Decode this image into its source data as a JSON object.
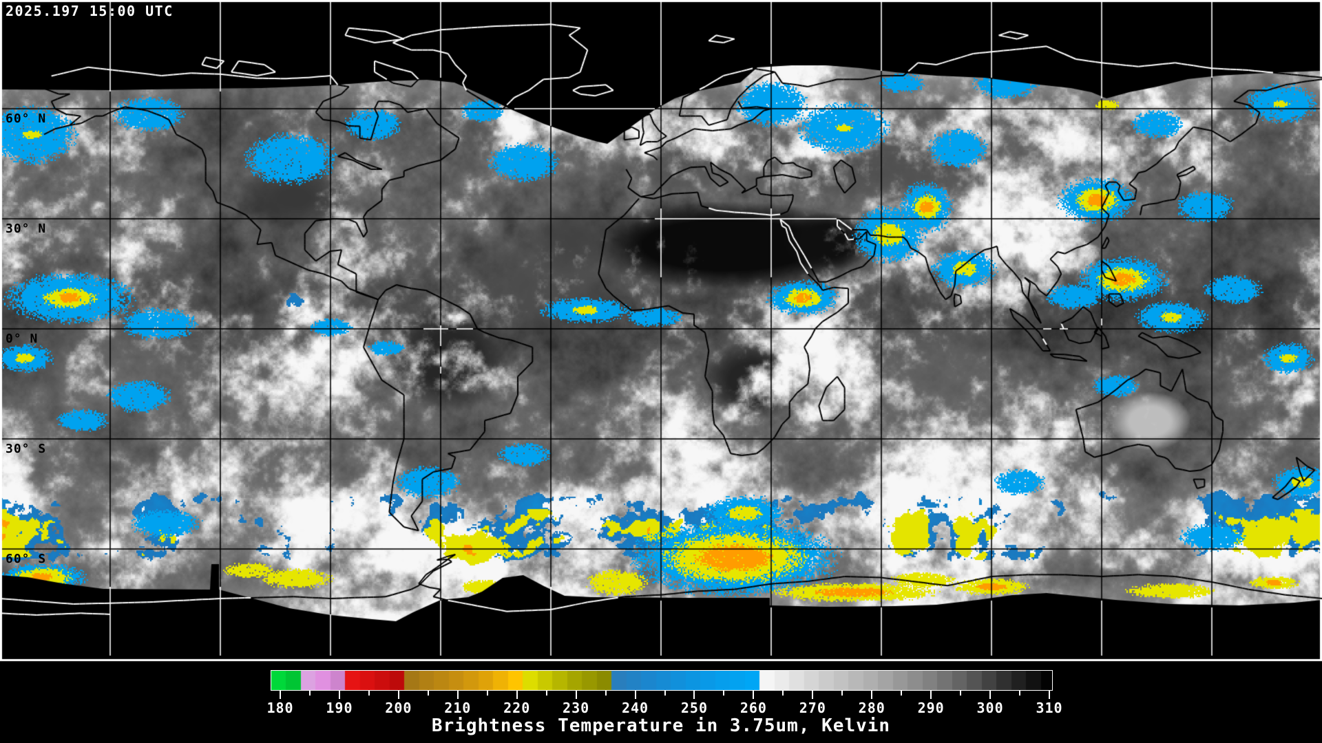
{
  "header": {
    "timestamp": "2025.197 15:00 UTC"
  },
  "map": {
    "projection": "equirectangular",
    "latitude_labels": [
      {
        "lat": 60,
        "label": "60° N"
      },
      {
        "lat": 30,
        "label": "30° N"
      },
      {
        "lat": 0,
        "label": "0° N"
      },
      {
        "lat": -30,
        "label": "30° S"
      },
      {
        "lat": -60,
        "label": "60° S"
      }
    ],
    "grid": {
      "lon_step_deg": 30,
      "lat_step_deg": 30
    }
  },
  "colorbar": {
    "title": "Brightness Temperature in 3.75um, Kelvin",
    "min": 180,
    "max": 310,
    "major_tick_step": 10,
    "minor_tick_step": 5,
    "tick_labels": [
      "180",
      "190",
      "200",
      "210",
      "220",
      "230",
      "240",
      "250",
      "260",
      "270",
      "280",
      "290",
      "300",
      "310"
    ],
    "band_step": 2.5,
    "stops": [
      [
        178.5,
        "#00e23e"
      ],
      [
        182.5,
        "#00c332"
      ],
      [
        185.0,
        "#f49ef4"
      ],
      [
        188.0,
        "#d98bd9"
      ],
      [
        191.0,
        "#c47fc4"
      ],
      [
        191.3,
        "#ea1414"
      ],
      [
        196.0,
        "#d40f0f"
      ],
      [
        200.0,
        "#bb0a0a"
      ],
      [
        200.3,
        "#9c7218"
      ],
      [
        205.0,
        "#b28114"
      ],
      [
        210.0,
        "#c78f10"
      ],
      [
        215.0,
        "#e0a309"
      ],
      [
        219.8,
        "#ffc400"
      ],
      [
        220.0,
        "#efef00"
      ],
      [
        224.0,
        "#cfcf00"
      ],
      [
        229.0,
        "#a9a900"
      ],
      [
        235.0,
        "#8a8a00"
      ],
      [
        235.2,
        "#2f7ab6"
      ],
      [
        242.0,
        "#1b86cd"
      ],
      [
        250.0,
        "#0c95e2"
      ],
      [
        256.0,
        "#04a0ee"
      ],
      [
        259.8,
        "#00a6f5"
      ],
      [
        260.0,
        "#ffffff"
      ],
      [
        270.0,
        "#d4d4d4"
      ],
      [
        280.0,
        "#aeaeae"
      ],
      [
        290.0,
        "#808080"
      ],
      [
        297.0,
        "#565656"
      ],
      [
        303.0,
        "#2a2a2a"
      ],
      [
        310.0,
        "#000000"
      ]
    ]
  },
  "colors": {
    "background": "#000000",
    "map_border": "#ffffff",
    "grid_dark": "#000000",
    "grid_light": "#ffffff",
    "label_dark": "#000000",
    "label_light": "#ffffff",
    "cold_cloud_blue": "#00a2ef",
    "cold_core_yellow": "#e6e600",
    "cold_core_orange": "#ff9c00"
  }
}
